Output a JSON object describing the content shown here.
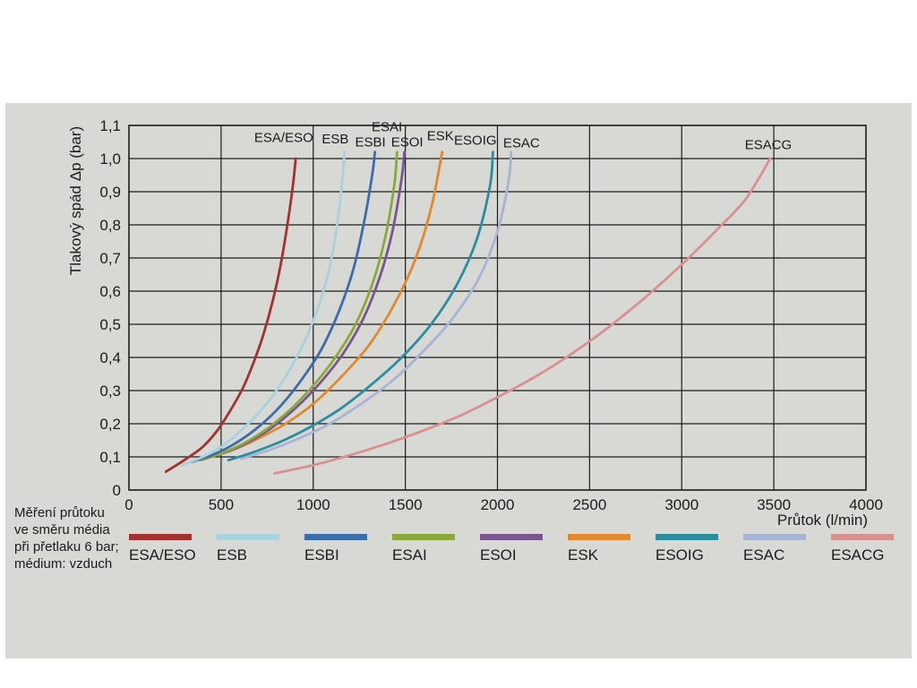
{
  "page": {
    "background": "#ffffff",
    "panel_bg": "#d8d8d4",
    "grid_color": "#1c1c1c",
    "text_color": "#1b1b1b"
  },
  "chart_data": {
    "type": "line",
    "title": "",
    "xlabel": "Průtok (l/min)",
    "ylabel": "Tlakový spád Δp (bar)",
    "xlim": [
      0,
      4000
    ],
    "ylim": [
      0,
      1.1
    ],
    "grid": true,
    "legend_position": "bottom",
    "x_ticks": [
      {
        "value": 0,
        "label": "0"
      },
      {
        "value": 500,
        "label": "500"
      },
      {
        "value": 1000,
        "label": "1000"
      },
      {
        "value": 1500,
        "label": "1500"
      },
      {
        "value": 2000,
        "label": "2000"
      },
      {
        "value": 2500,
        "label": "2500"
      },
      {
        "value": 3000,
        "label": "3000"
      },
      {
        "value": 3500,
        "label": "3500"
      },
      {
        "value": 4000,
        "label": "4000"
      }
    ],
    "y_ticks": [
      {
        "value": 0,
        "label": "0"
      },
      {
        "value": 0.1,
        "label": "0,1"
      },
      {
        "value": 0.2,
        "label": "0,2"
      },
      {
        "value": 0.3,
        "label": "0,3"
      },
      {
        "value": 0.4,
        "label": "0,4"
      },
      {
        "value": 0.5,
        "label": "0,5"
      },
      {
        "value": 0.6,
        "label": "0,6"
      },
      {
        "value": 0.7,
        "label": "0,7"
      },
      {
        "value": 0.8,
        "label": "0,8"
      },
      {
        "value": 0.9,
        "label": "0,9"
      },
      {
        "value": 1.0,
        "label": "1,0"
      },
      {
        "value": 1.1,
        "label": "1,1"
      }
    ],
    "note_lines": [
      "Měření průtoku",
      "ve směru média",
      "při přetlaku 6 bar;",
      "médium: vzduch"
    ],
    "series": [
      {
        "name": "ESA/ESO",
        "color": "#a53030",
        "label": {
          "x": 1000,
          "y": 1.05,
          "anchor": "end"
        },
        "points": [
          [
            200,
            0.055
          ],
          [
            300,
            0.09
          ],
          [
            400,
            0.13
          ],
          [
            480,
            0.18
          ],
          [
            550,
            0.24
          ],
          [
            620,
            0.31
          ],
          [
            680,
            0.39
          ],
          [
            730,
            0.47
          ],
          [
            780,
            0.57
          ],
          [
            820,
            0.67
          ],
          [
            860,
            0.8
          ],
          [
            890,
            0.92
          ],
          [
            905,
            1.0
          ]
        ]
      },
      {
        "name": "ESB",
        "color": "#a8d2dd",
        "label": {
          "x": 1120,
          "y": 1.046,
          "anchor": "middle"
        },
        "points": [
          [
            290,
            0.075
          ],
          [
            400,
            0.1
          ],
          [
            500,
            0.13
          ],
          [
            600,
            0.175
          ],
          [
            700,
            0.23
          ],
          [
            800,
            0.3
          ],
          [
            900,
            0.39
          ],
          [
            1000,
            0.51
          ],
          [
            1080,
            0.65
          ],
          [
            1130,
            0.8
          ],
          [
            1160,
            0.95
          ],
          [
            1170,
            1.02
          ]
        ]
      },
      {
        "name": "ESBI",
        "color": "#3b6cab",
        "label": {
          "x": 1310,
          "y": 1.036,
          "anchor": "middle"
        },
        "points": [
          [
            340,
            0.085
          ],
          [
            450,
            0.105
          ],
          [
            560,
            0.135
          ],
          [
            680,
            0.18
          ],
          [
            800,
            0.24
          ],
          [
            920,
            0.32
          ],
          [
            1040,
            0.42
          ],
          [
            1140,
            0.54
          ],
          [
            1220,
            0.67
          ],
          [
            1280,
            0.82
          ],
          [
            1320,
            0.95
          ],
          [
            1335,
            1.02
          ]
        ]
      },
      {
        "name": "ESAI",
        "color": "#8ba93b",
        "label": {
          "x": 1400,
          "y": 1.082,
          "anchor": "middle"
        },
        "points": [
          [
            390,
            0.09
          ],
          [
            500,
            0.11
          ],
          [
            620,
            0.14
          ],
          [
            750,
            0.185
          ],
          [
            880,
            0.245
          ],
          [
            1000,
            0.315
          ],
          [
            1120,
            0.4
          ],
          [
            1230,
            0.5
          ],
          [
            1320,
            0.62
          ],
          [
            1390,
            0.76
          ],
          [
            1440,
            0.92
          ],
          [
            1455,
            1.02
          ]
        ]
      },
      {
        "name": "ESOI",
        "color": "#7a5590",
        "label": {
          "x": 1510,
          "y": 1.036,
          "anchor": "middle"
        },
        "points": [
          [
            410,
            0.095
          ],
          [
            530,
            0.115
          ],
          [
            650,
            0.145
          ],
          [
            780,
            0.19
          ],
          [
            910,
            0.25
          ],
          [
            1040,
            0.325
          ],
          [
            1160,
            0.41
          ],
          [
            1270,
            0.515
          ],
          [
            1360,
            0.64
          ],
          [
            1430,
            0.78
          ],
          [
            1480,
            0.94
          ],
          [
            1495,
            1.02
          ]
        ]
      },
      {
        "name": "ESK",
        "color": "#e1892c",
        "label": {
          "x": 1690,
          "y": 1.055,
          "anchor": "middle"
        },
        "points": [
          [
            440,
            0.1
          ],
          [
            560,
            0.12
          ],
          [
            700,
            0.155
          ],
          [
            850,
            0.2
          ],
          [
            1000,
            0.26
          ],
          [
            1150,
            0.34
          ],
          [
            1300,
            0.435
          ],
          [
            1430,
            0.55
          ],
          [
            1550,
            0.69
          ],
          [
            1640,
            0.85
          ],
          [
            1700,
            1.02
          ]
        ]
      },
      {
        "name": "ESOIG",
        "color": "#2d8da0",
        "label": {
          "x": 1880,
          "y": 1.042,
          "anchor": "middle"
        },
        "points": [
          [
            540,
            0.09
          ],
          [
            680,
            0.115
          ],
          [
            840,
            0.15
          ],
          [
            1000,
            0.195
          ],
          [
            1160,
            0.25
          ],
          [
            1320,
            0.32
          ],
          [
            1480,
            0.4
          ],
          [
            1640,
            0.5
          ],
          [
            1780,
            0.62
          ],
          [
            1890,
            0.76
          ],
          [
            1960,
            0.92
          ],
          [
            1975,
            1.02
          ]
        ]
      },
      {
        "name": "ESAC",
        "color": "#a9b4d5",
        "label": {
          "x": 2130,
          "y": 1.034,
          "anchor": "middle"
        },
        "points": [
          [
            610,
            0.095
          ],
          [
            760,
            0.12
          ],
          [
            920,
            0.155
          ],
          [
            1090,
            0.2
          ],
          [
            1260,
            0.26
          ],
          [
            1430,
            0.33
          ],
          [
            1600,
            0.42
          ],
          [
            1760,
            0.52
          ],
          [
            1900,
            0.64
          ],
          [
            2000,
            0.78
          ],
          [
            2060,
            0.93
          ],
          [
            2075,
            1.02
          ]
        ]
      },
      {
        "name": "ESACG",
        "color": "#d89090",
        "label": {
          "x": 3470,
          "y": 1.028,
          "anchor": "middle"
        },
        "points": [
          [
            790,
            0.05
          ],
          [
            1000,
            0.075
          ],
          [
            1200,
            0.105
          ],
          [
            1400,
            0.14
          ],
          [
            1600,
            0.18
          ],
          [
            1800,
            0.225
          ],
          [
            2000,
            0.28
          ],
          [
            2200,
            0.34
          ],
          [
            2400,
            0.41
          ],
          [
            2600,
            0.49
          ],
          [
            2800,
            0.58
          ],
          [
            3000,
            0.68
          ],
          [
            3200,
            0.79
          ],
          [
            3350,
            0.88
          ],
          [
            3480,
            1.0
          ]
        ]
      }
    ]
  }
}
